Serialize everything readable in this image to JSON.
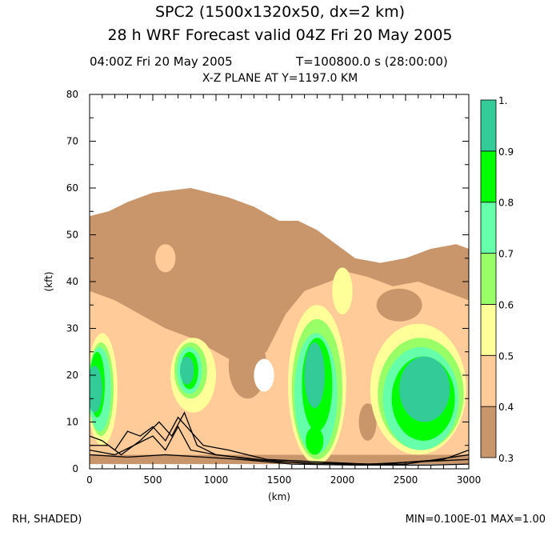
{
  "header": {
    "title_line1": "SPC2 (1500x1320x50, dx=2 km)",
    "title_line2": "28 h WRF Forecast valid 04Z Fri 20 May 2005",
    "valid_time": "04:00Z Fri 20 May 2005",
    "model_time": "T=100800.0 s (28:00:00)",
    "plane": "X-Z PLANE AT Y=1197.0 KM"
  },
  "footer": {
    "field_label": "RH, SHADED)",
    "min_max": "MIN=0.100E-01 MAX=1.00"
  },
  "chart_data": {
    "type": "heatmap",
    "title": "X-Z PLANE AT Y=1197.0 KM",
    "xlabel": "(km)",
    "ylabel": "(kft)",
    "xlim": [
      0,
      3000
    ],
    "ylim": [
      0,
      80
    ],
    "xticks": [
      "0",
      "500",
      "1000",
      "1500",
      "2000",
      "2500",
      "3000"
    ],
    "yticks": [
      "0",
      "10",
      "20",
      "30",
      "40",
      "50",
      "60",
      "70",
      "80"
    ],
    "colorbar": {
      "levels": [
        "0.3",
        "0.4",
        "0.5",
        "0.6",
        "0.7",
        "0.8",
        "0.9",
        "1."
      ],
      "colors": [
        "#c8966a",
        "#ffcc99",
        "#ffff99",
        "#99ff66",
        "#66ffaa",
        "#00ff00",
        "#33cc99"
      ]
    },
    "field": "RH",
    "regions": [
      {
        "level": 0,
        "poly": [
          [
            0,
            54
          ],
          [
            150,
            55
          ],
          [
            300,
            57
          ],
          [
            500,
            59
          ],
          [
            800,
            60
          ],
          [
            1100,
            58
          ],
          [
            1300,
            56
          ],
          [
            1500,
            53
          ],
          [
            1650,
            53
          ],
          [
            1800,
            51
          ],
          [
            1950,
            48
          ],
          [
            2100,
            45
          ],
          [
            2300,
            44
          ],
          [
            2500,
            45
          ],
          [
            2700,
            47
          ],
          [
            2900,
            48
          ],
          [
            3000,
            47
          ],
          [
            3000,
            1
          ],
          [
            0,
            1
          ]
        ]
      },
      {
        "level": 1,
        "poly": [
          [
            0,
            38
          ],
          [
            200,
            36
          ],
          [
            400,
            33
          ],
          [
            600,
            30
          ],
          [
            800,
            28
          ],
          [
            1000,
            25
          ],
          [
            1200,
            22
          ],
          [
            1400,
            25
          ],
          [
            1550,
            33
          ],
          [
            1700,
            38
          ],
          [
            1900,
            40
          ],
          [
            2050,
            42
          ],
          [
            2200,
            41
          ],
          [
            2400,
            39
          ],
          [
            2600,
            40
          ],
          [
            2800,
            38
          ],
          [
            3000,
            36
          ],
          [
            3000,
            3
          ],
          [
            0,
            3
          ]
        ]
      },
      {
        "level": 0,
        "ellipse": [
          1250,
          22,
          150,
          7
        ]
      },
      {
        "level": 0,
        "ellipse": [
          2200,
          10,
          70,
          4
        ]
      },
      {
        "level": 0,
        "ellipse": [
          2450,
          35,
          180,
          3.5
        ]
      },
      {
        "level": 0,
        "ellipse": [
          900,
          36,
          350,
          5
        ]
      },
      {
        "level": 1,
        "ellipse": [
          600,
          45,
          80,
          3
        ]
      },
      {
        "level": 2,
        "ellipse": [
          1800,
          18,
          230,
          17
        ]
      },
      {
        "level": 2,
        "ellipse": [
          2600,
          17,
          380,
          14
        ]
      },
      {
        "level": 2,
        "ellipse": [
          100,
          17,
          120,
          12
        ]
      },
      {
        "level": 2,
        "ellipse": [
          820,
          20,
          180,
          8
        ]
      },
      {
        "level": 2,
        "ellipse": [
          2000,
          38,
          80,
          5
        ]
      },
      {
        "level": 3,
        "ellipse": [
          1800,
          17,
          200,
          15
        ]
      },
      {
        "level": 3,
        "ellipse": [
          2620,
          16,
          340,
          12
        ]
      },
      {
        "level": 3,
        "ellipse": [
          90,
          17,
          100,
          10
        ]
      },
      {
        "level": 3,
        "ellipse": [
          800,
          21,
          130,
          6
        ]
      },
      {
        "level": 4,
        "ellipse": [
          1790,
          16,
          170,
          13
        ]
      },
      {
        "level": 4,
        "ellipse": [
          2620,
          15,
          300,
          11
        ]
      },
      {
        "level": 4,
        "ellipse": [
          80,
          17,
          90,
          9
        ]
      },
      {
        "level": 4,
        "ellipse": [
          790,
          21,
          100,
          5
        ]
      },
      {
        "level": 5,
        "ellipse": [
          1800,
          18,
          120,
          10
        ]
      },
      {
        "level": 5,
        "ellipse": [
          2640,
          15,
          250,
          9
        ]
      },
      {
        "level": 5,
        "ellipse": [
          1780,
          6,
          70,
          3
        ]
      },
      {
        "level": 5,
        "ellipse": [
          60,
          18,
          60,
          7
        ]
      },
      {
        "level": 5,
        "ellipse": [
          790,
          21,
          70,
          4
        ]
      },
      {
        "level": 6,
        "ellipse": [
          1780,
          20,
          80,
          7
        ]
      },
      {
        "level": 6,
        "ellipse": [
          2650,
          17,
          200,
          7
        ]
      },
      {
        "level": 6,
        "ellipse": [
          40,
          17,
          60,
          5
        ]
      },
      {
        "level": 6,
        "ellipse": [
          770,
          21,
          55,
          3
        ]
      },
      {
        "level": -1,
        "ellipse": [
          1380,
          20,
          80,
          3.5
        ]
      }
    ],
    "contour_lines": [
      [
        [
          0,
          7
        ],
        [
          100,
          6
        ],
        [
          200,
          4
        ],
        [
          300,
          8
        ],
        [
          400,
          7
        ],
        [
          500,
          9
        ],
        [
          600,
          6
        ],
        [
          700,
          11
        ],
        [
          800,
          8
        ],
        [
          900,
          5
        ],
        [
          1100,
          4
        ],
        [
          1400,
          2
        ],
        [
          1800,
          1.5
        ],
        [
          2200,
          1
        ],
        [
          2600,
          1.5
        ],
        [
          3000,
          2
        ]
      ],
      [
        [
          0,
          5
        ],
        [
          150,
          5
        ],
        [
          250,
          3
        ],
        [
          400,
          6
        ],
        [
          550,
          10
        ],
        [
          650,
          7
        ],
        [
          750,
          12
        ],
        [
          850,
          5
        ],
        [
          1000,
          3
        ],
        [
          1300,
          2
        ],
        [
          1700,
          1.2
        ],
        [
          2300,
          1
        ],
        [
          2800,
          2
        ],
        [
          3000,
          4
        ]
      ],
      [
        [
          0,
          4
        ],
        [
          200,
          3
        ],
        [
          350,
          5
        ],
        [
          500,
          7
        ],
        [
          600,
          4
        ],
        [
          700,
          9
        ],
        [
          800,
          4
        ],
        [
          1000,
          3
        ],
        [
          1500,
          1.5
        ],
        [
          2000,
          1
        ],
        [
          2500,
          1
        ],
        [
          3000,
          3
        ]
      ],
      [
        [
          0,
          3
        ],
        [
          300,
          2.5
        ],
        [
          600,
          3
        ],
        [
          900,
          2.5
        ],
        [
          1200,
          2
        ],
        [
          1600,
          1
        ],
        [
          2100,
          0.8
        ],
        [
          2700,
          0.8
        ],
        [
          3000,
          1
        ]
      ]
    ]
  }
}
